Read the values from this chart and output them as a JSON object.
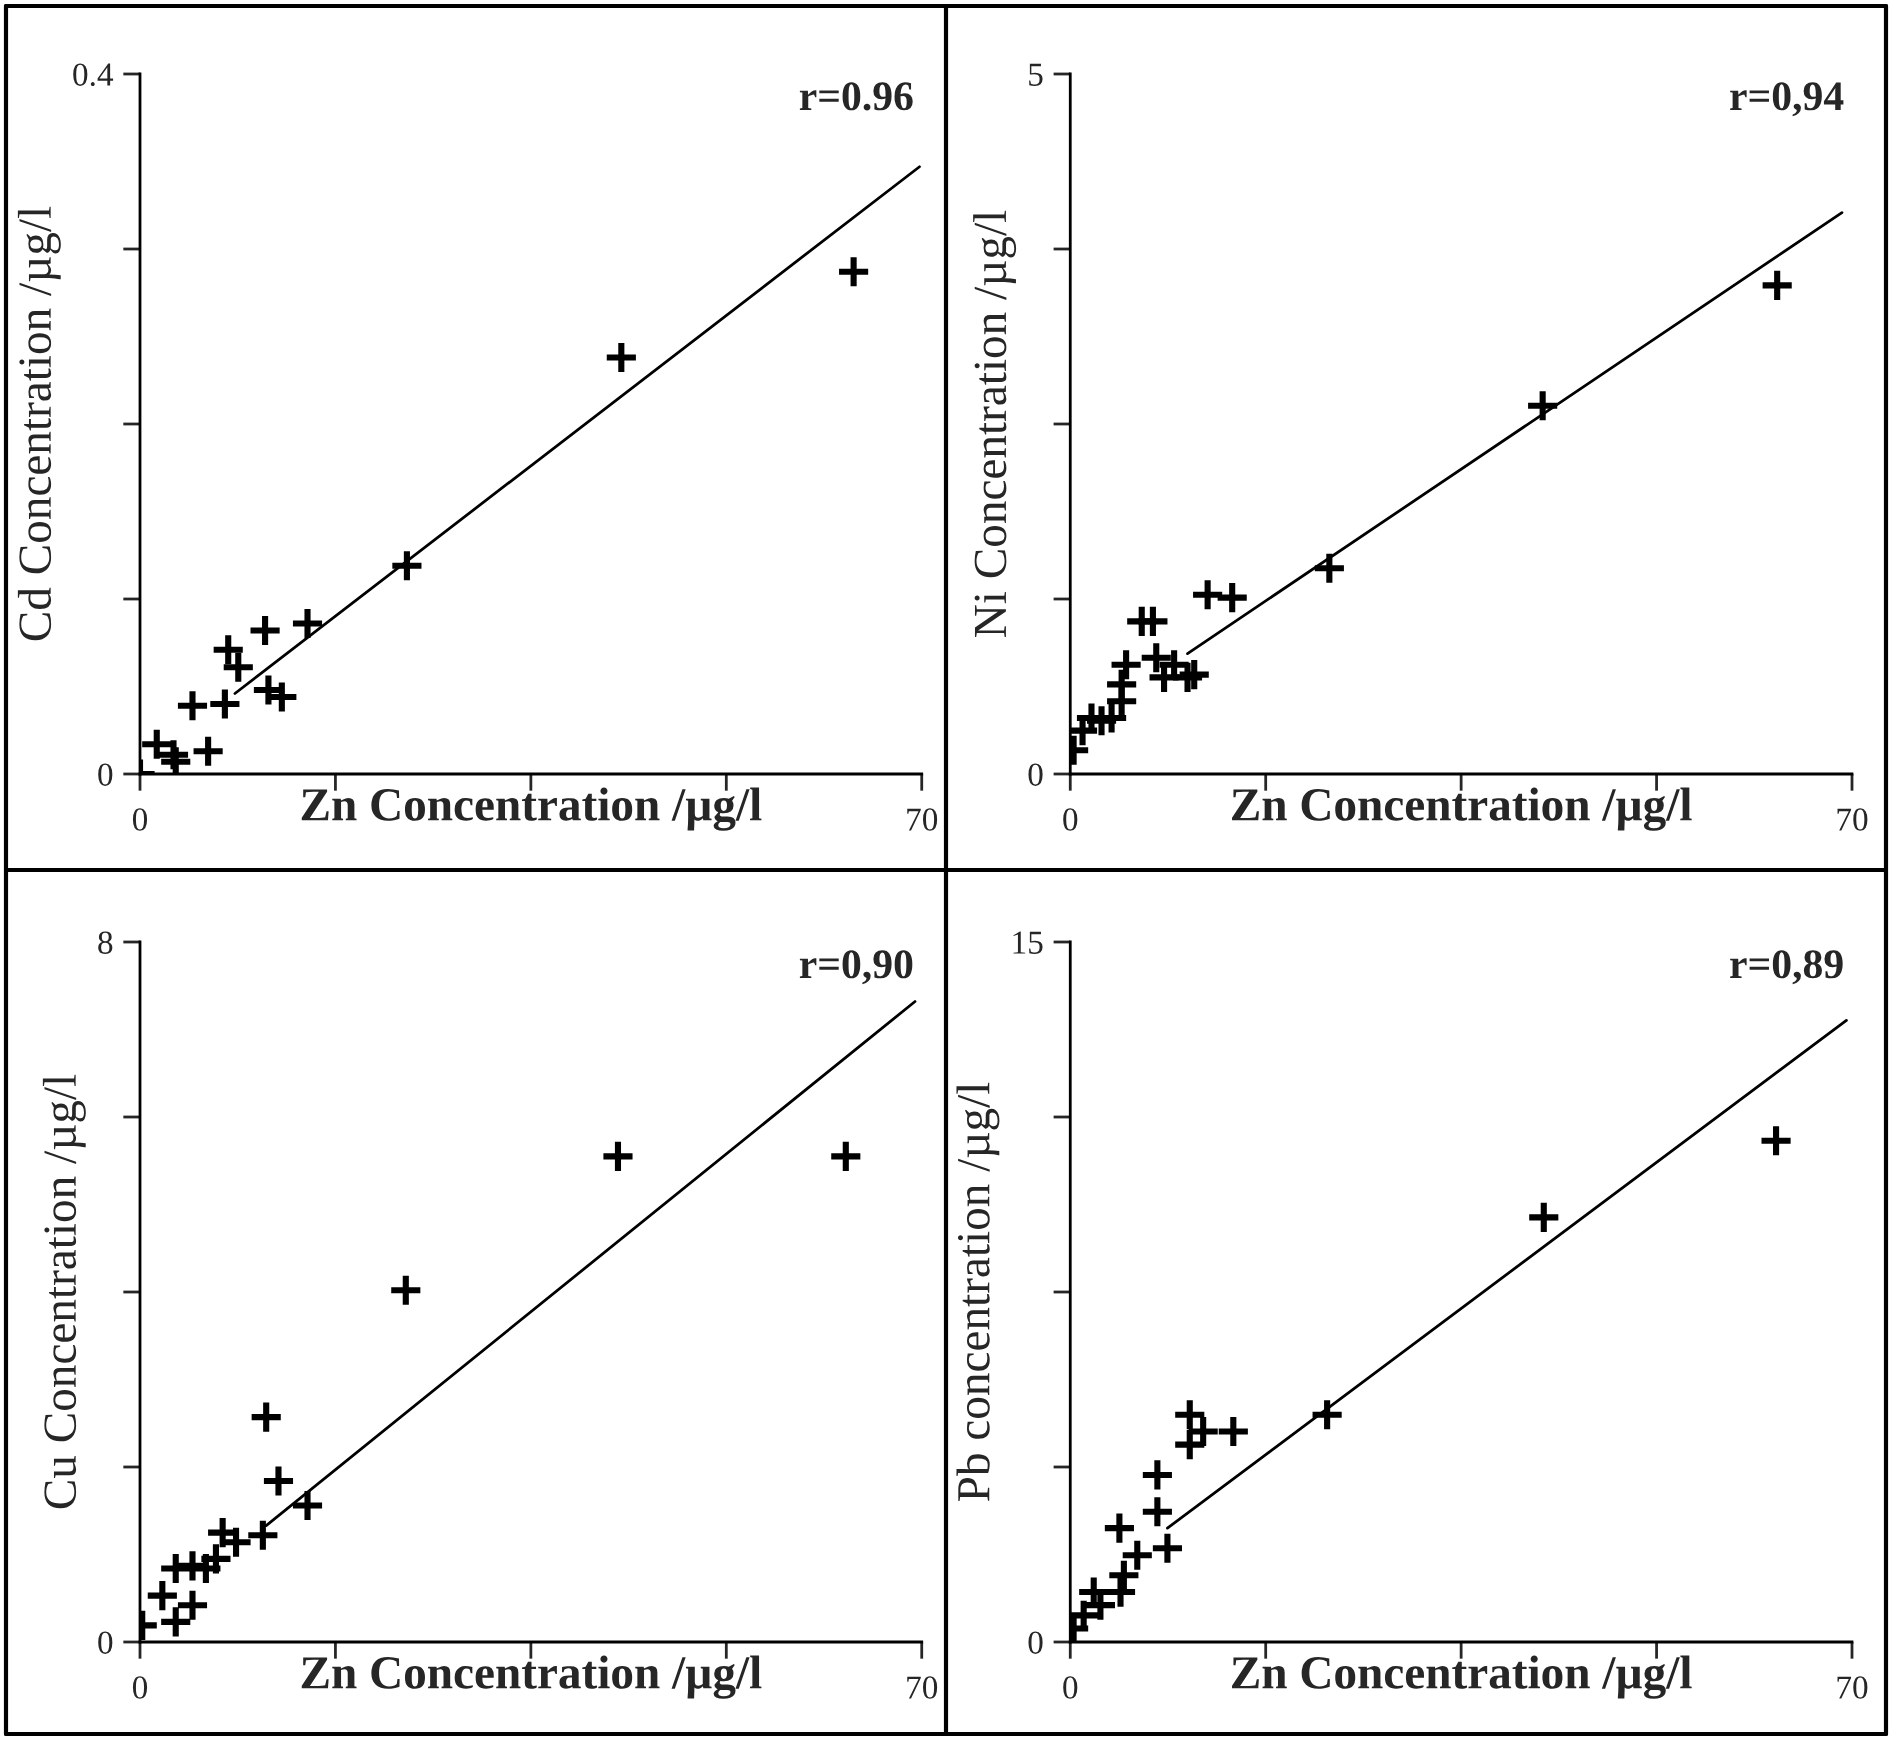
{
  "chart_data": [
    {
      "type": "scatter",
      "xlabel": "Zn Concentration /µg/l",
      "ylabel": "Cd Concentration /µg/l",
      "annotations": [
        "r=0.96"
      ],
      "marker": "cross",
      "grid": false,
      "xlim": [
        0,
        70
      ],
      "xticks": [
        0,
        {
          "value": 17.5,
          "label": null
        },
        {
          "value": 35,
          "label": null
        },
        {
          "value": 52.5,
          "label": null
        },
        70
      ],
      "ylim": [
        0,
        0.4
      ],
      "yticks": [
        0,
        {
          "value": 0.1,
          "label": null
        },
        {
          "value": 0.2,
          "label": null
        },
        {
          "value": 0.3,
          "label": null
        },
        0.4
      ],
      "series": [
        {
          "color": "#000000",
          "x": [
            0,
            1.5,
            3.0,
            3.2,
            6.1,
            4.7,
            7.6,
            7.9,
            8.8,
            11.2,
            11.5,
            12.7,
            15.0,
            23.9,
            43.1,
            63.9
          ],
          "values": [
            0,
            0.017,
            0.011,
            0.007,
            0.013,
            0.039,
            0.04,
            0.071,
            0.061,
            0.082,
            0.048,
            0.044,
            0.086,
            0.119,
            0.238,
            0.287
          ]
        },
        {
          "type": "line",
          "marker": "none",
          "color": "#000000",
          "x": [
            8.5,
            69.8
          ],
          "values": [
            0.046,
            0.347
          ]
        }
      ]
    },
    {
      "type": "scatter",
      "xlabel": "Zn Concentration /µg/l",
      "ylabel": "Ni Concentration /µg/l",
      "annotations": [
        "r=0,94"
      ],
      "marker": "cross",
      "grid": false,
      "xlim": [
        0,
        70
      ],
      "xticks": [
        0,
        {
          "value": 17.5,
          "label": null
        },
        {
          "value": 35,
          "label": null
        },
        {
          "value": 52.5,
          "label": null
        },
        70
      ],
      "ylim": [
        0,
        5
      ],
      "yticks": [
        0,
        {
          "value": 1.25,
          "label": null
        },
        {
          "value": 2.5,
          "label": null
        },
        {
          "value": 3.75,
          "label": null
        },
        5
      ],
      "series": [
        {
          "color": "#000000",
          "x": [
            0.3,
            1.1,
            1.9,
            2.8,
            3.7,
            4.6,
            5.0,
            4.6,
            6.4,
            7.4,
            7.7,
            8.4,
            9.3,
            10.5,
            11.1,
            12.3,
            14.5,
            23.2,
            42.3,
            63.3
          ],
          "values": [
            0.17,
            0.31,
            0.4,
            0.38,
            0.4,
            0.52,
            0.78,
            0.64,
            1.09,
            1.09,
            0.83,
            0.69,
            0.78,
            0.69,
            0.71,
            1.28,
            1.26,
            1.47,
            2.63,
            3.49
          ]
        },
        {
          "type": "line",
          "marker": "none",
          "color": "#000000",
          "x": [
            10.5,
            69.1
          ],
          "values": [
            0.86,
            4.01
          ]
        }
      ]
    },
    {
      "type": "scatter",
      "xlabel": "Zn Concentration /µg/l",
      "ylabel": "Cu Concentration /µg/l",
      "annotations": [
        "r=0,90"
      ],
      "marker": "cross",
      "grid": false,
      "xlim": [
        0,
        70
      ],
      "xticks": [
        0,
        {
          "value": 17.5,
          "label": null
        },
        {
          "value": 35,
          "label": null
        },
        {
          "value": 52.5,
          "label": null
        },
        70
      ],
      "ylim": [
        0,
        8
      ],
      "yticks": [
        0,
        {
          "value": 2,
          "label": null
        },
        {
          "value": 4,
          "label": null
        },
        {
          "value": 6,
          "label": null
        },
        8
      ],
      "series": [
        {
          "color": "#000000",
          "x": [
            0.2,
            2.0,
            3.2,
            3.2,
            4.7,
            4.7,
            5.9,
            6.8,
            7.4,
            8.6,
            11.0,
            11.3,
            12.4,
            15.0,
            23.8,
            42.8,
            63.2
          ],
          "values": [
            0.19,
            0.53,
            0.23,
            0.84,
            0.42,
            0.87,
            0.84,
            0.95,
            1.25,
            1.14,
            1.22,
            2.57,
            1.84,
            1.56,
            4.02,
            5.55,
            5.55
          ]
        },
        {
          "type": "line",
          "marker": "none",
          "color": "#000000",
          "x": [
            11.3,
            69.4
          ],
          "values": [
            1.33,
            7.32
          ]
        }
      ]
    },
    {
      "type": "scatter",
      "xlabel": "Zn Concentration /µg/l",
      "ylabel": "Pb concentration /µg/l",
      "annotations": [
        "r=0,89"
      ],
      "marker": "cross",
      "grid": false,
      "xlim": [
        0,
        70
      ],
      "xticks": [
        0,
        {
          "value": 17.5,
          "label": null
        },
        {
          "value": 35,
          "label": null
        },
        {
          "value": 52.5,
          "label": null
        },
        70
      ],
      "ylim": [
        0,
        15
      ],
      "yticks": [
        0,
        {
          "value": 3.75,
          "label": null
        },
        {
          "value": 7.5,
          "label": null
        },
        {
          "value": 11.25,
          "label": null
        },
        15
      ],
      "series": [
        {
          "color": "#000000",
          "x": [
            0.3,
            1.2,
            2.1,
            2.7,
            4.5,
            4.4,
            4.8,
            6.0,
            7.8,
            7.8,
            8.7,
            10.7,
            10.7,
            11.9,
            14.6,
            23.0,
            42.4,
            63.2
          ],
          "values": [
            0.29,
            0.57,
            1.07,
            0.79,
            1.07,
            2.44,
            1.43,
            1.86,
            2.79,
            3.58,
            2.01,
            4.23,
            4.87,
            4.51,
            4.51,
            4.87,
            9.1,
            10.74
          ]
        },
        {
          "type": "line",
          "marker": "none",
          "color": "#000000",
          "x": [
            8.7,
            69.5
          ],
          "values": [
            2.44,
            13.32
          ]
        }
      ]
    }
  ]
}
